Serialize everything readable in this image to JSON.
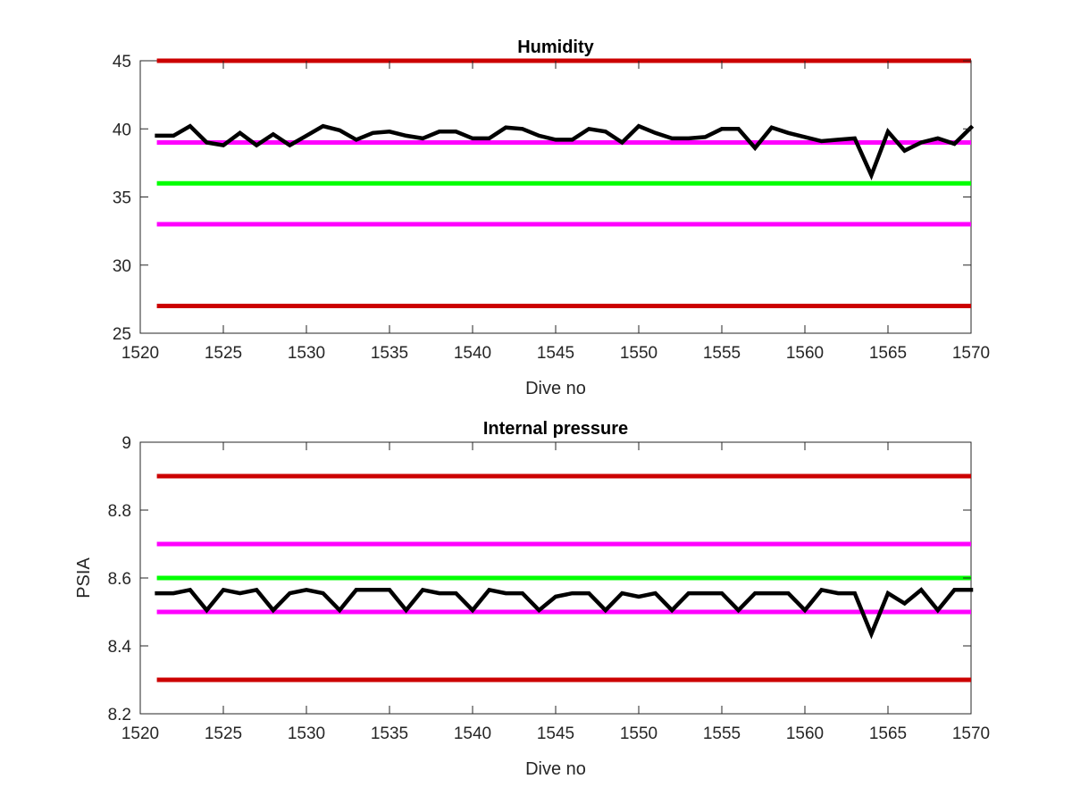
{
  "chart_data": [
    {
      "type": "line",
      "title": "Humidity",
      "xlabel": "Dive no",
      "ylabel": "",
      "xlim": [
        1520,
        1570
      ],
      "ylim": [
        25,
        45
      ],
      "xticks": [
        1520,
        1525,
        1530,
        1535,
        1540,
        1545,
        1550,
        1555,
        1560,
        1565,
        1570
      ],
      "yticks": [
        25,
        30,
        35,
        40,
        45
      ],
      "grid": false,
      "reference_lines": [
        {
          "y": 45,
          "color": "#cc0000"
        },
        {
          "y": 39,
          "color": "#ff00ff"
        },
        {
          "y": 36,
          "color": "#00ff00"
        },
        {
          "y": 33,
          "color": "#ff00ff"
        },
        {
          "y": 27,
          "color": "#cc0000"
        }
      ],
      "series": [
        {
          "color": "#000000",
          "x": [
            1521,
            1522,
            1523,
            1524,
            1525,
            1526,
            1527,
            1528,
            1529,
            1530,
            1531,
            1532,
            1533,
            1534,
            1535,
            1536,
            1537,
            1538,
            1539,
            1540,
            1541,
            1542,
            1543,
            1544,
            1545,
            1546,
            1547,
            1548,
            1549,
            1550,
            1551,
            1552,
            1553,
            1554,
            1555,
            1556,
            1557,
            1558,
            1559,
            1560,
            1561,
            1562,
            1563,
            1564,
            1565,
            1566,
            1567,
            1568,
            1569,
            1570
          ],
          "y": [
            39.5,
            39.5,
            40.2,
            39.0,
            38.8,
            39.7,
            38.8,
            39.6,
            38.8,
            39.5,
            40.2,
            39.9,
            39.2,
            39.7,
            39.8,
            39.5,
            39.3,
            39.8,
            39.8,
            39.3,
            39.3,
            40.1,
            40.0,
            39.5,
            39.2,
            39.2,
            40.0,
            39.8,
            39.0,
            40.2,
            39.7,
            39.3,
            39.3,
            39.4,
            40.0,
            40.0,
            38.6,
            40.1,
            39.7,
            39.4,
            39.1,
            39.2,
            39.3,
            36.6,
            39.8,
            38.4,
            39.0,
            39.3,
            38.9,
            40.1
          ]
        }
      ]
    },
    {
      "type": "line",
      "title": "Internal pressure",
      "xlabel": "Dive no",
      "ylabel": "PSIA",
      "xlim": [
        1520,
        1570
      ],
      "ylim": [
        8.2,
        9
      ],
      "xticks": [
        1520,
        1525,
        1530,
        1535,
        1540,
        1545,
        1550,
        1555,
        1560,
        1565,
        1570
      ],
      "yticks": [
        8.2,
        8.4,
        8.6,
        8.8,
        9
      ],
      "grid": false,
      "reference_lines": [
        {
          "y": 8.9,
          "color": "#cc0000"
        },
        {
          "y": 8.7,
          "color": "#ff00ff"
        },
        {
          "y": 8.6,
          "color": "#00ff00"
        },
        {
          "y": 8.5,
          "color": "#ff00ff"
        },
        {
          "y": 8.3,
          "color": "#cc0000"
        }
      ],
      "series": [
        {
          "color": "#000000",
          "x": [
            1521,
            1522,
            1523,
            1524,
            1525,
            1526,
            1527,
            1528,
            1529,
            1530,
            1531,
            1532,
            1533,
            1534,
            1535,
            1536,
            1537,
            1538,
            1539,
            1540,
            1541,
            1542,
            1543,
            1544,
            1545,
            1546,
            1547,
            1548,
            1549,
            1550,
            1551,
            1552,
            1553,
            1554,
            1555,
            1556,
            1557,
            1558,
            1559,
            1560,
            1561,
            1562,
            1563,
            1564,
            1565,
            1566,
            1567,
            1568,
            1569,
            1570
          ],
          "y": [
            8.555,
            8.555,
            8.565,
            8.505,
            8.565,
            8.555,
            8.565,
            8.505,
            8.555,
            8.565,
            8.555,
            8.505,
            8.565,
            8.565,
            8.565,
            8.505,
            8.565,
            8.555,
            8.555,
            8.505,
            8.565,
            8.555,
            8.555,
            8.505,
            8.545,
            8.555,
            8.555,
            8.505,
            8.555,
            8.545,
            8.555,
            8.505,
            8.555,
            8.555,
            8.555,
            8.505,
            8.555,
            8.555,
            8.555,
            8.505,
            8.565,
            8.555,
            8.555,
            8.435,
            8.555,
            8.525,
            8.565,
            8.505,
            8.565,
            8.565
          ]
        }
      ]
    }
  ]
}
